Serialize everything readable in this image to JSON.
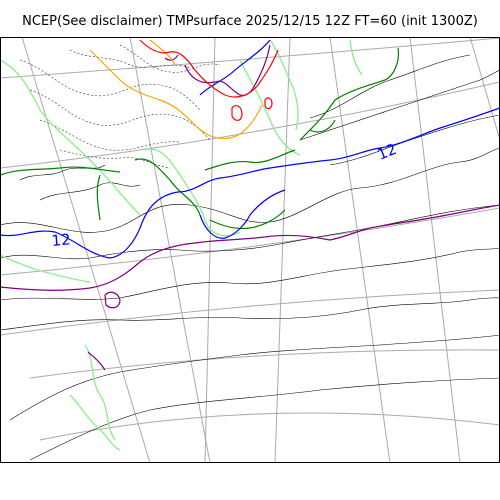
{
  "title": "NCEP(See disclaimer) TMPsurface 2025/12/15 12Z FT=60 (init 1300Z)",
  "contour_labels": [
    {
      "text": "12",
      "color": "#0000ff"
    },
    {
      "text": "12",
      "color": "#0000ff"
    }
  ],
  "colors": {
    "graticule": "#aaaaaa",
    "thin_contour": "#000000",
    "blue": "#0000ff",
    "purple": "#800080",
    "green": "#008000",
    "light_green": "#90ee90",
    "orange": "#ffa500",
    "red": "#ff0000"
  }
}
